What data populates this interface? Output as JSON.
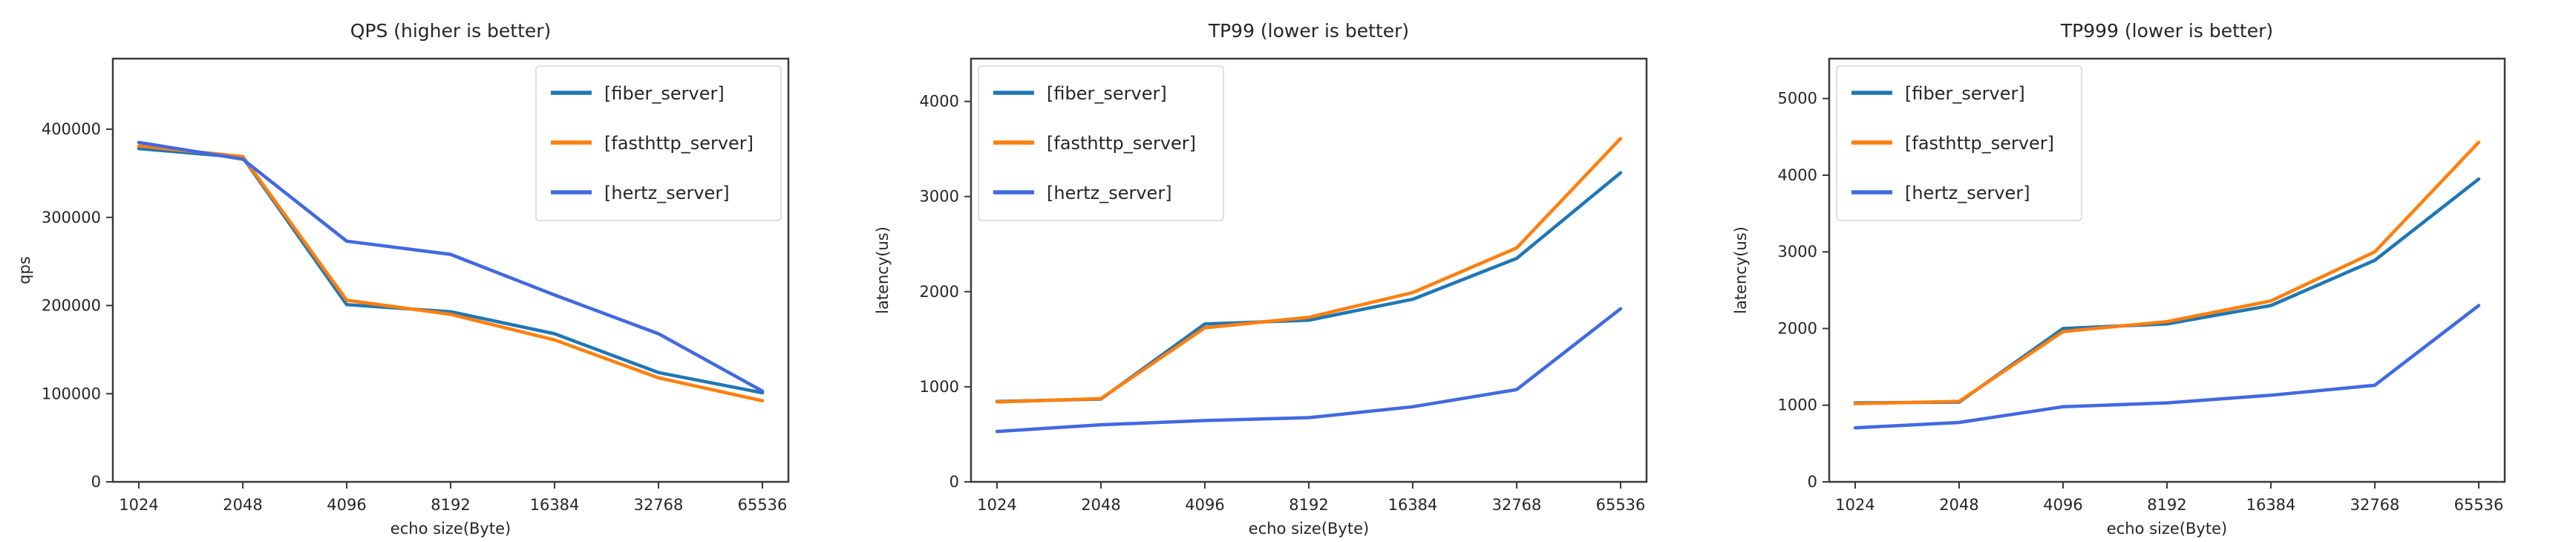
{
  "figure": {
    "background": "#ffffff"
  },
  "colors": {
    "fiber_server": "#1f77b4",
    "fasthttp_server": "#ff7f0e",
    "hertz_server": "#4169e1",
    "spine": "#3a3a3a",
    "text": "#262626",
    "legend_border": "#d5d5d5",
    "legend_bg": "#ffffff"
  },
  "chart_data": [
    {
      "type": "line",
      "title": "QPS (higher is better)",
      "xlabel": "echo size(Byte)",
      "ylabel": "qps",
      "categories": [
        "1024",
        "2048",
        "4096",
        "8192",
        "16384",
        "32768",
        "65536"
      ],
      "yticks": [
        0,
        100000,
        200000,
        300000,
        400000
      ],
      "ylim": [
        0,
        480000
      ],
      "grid": false,
      "legend_position": "upper-right",
      "series": [
        {
          "name": "[fiber_server]",
          "color_key": "fiber_server",
          "values": [
            378000,
            368000,
            201000,
            193000,
            168000,
            124000,
            101000
          ]
        },
        {
          "name": "[fasthttp_server]",
          "color_key": "fasthttp_server",
          "values": [
            381000,
            369000,
            206000,
            190000,
            161000,
            118000,
            92000
          ]
        },
        {
          "name": "[hertz_server]",
          "color_key": "hertz_server",
          "values": [
            385000,
            366000,
            273000,
            258000,
            212000,
            168000,
            103000
          ]
        }
      ]
    },
    {
      "type": "line",
      "title": "TP99 (lower is better)",
      "xlabel": "echo size(Byte)",
      "ylabel": "latency(us)",
      "categories": [
        "1024",
        "2048",
        "4096",
        "8192",
        "16384",
        "32768",
        "65536"
      ],
      "yticks": [
        0,
        1000,
        2000,
        3000,
        4000
      ],
      "ylim": [
        0,
        4450
      ],
      "grid": false,
      "legend_position": "upper-left",
      "series": [
        {
          "name": "[fiber_server]",
          "color_key": "fiber_server",
          "values": [
            845,
            870,
            1660,
            1700,
            1920,
            2350,
            3250
          ]
        },
        {
          "name": "[fasthttp_server]",
          "color_key": "fasthttp_server",
          "values": [
            840,
            875,
            1620,
            1730,
            1990,
            2460,
            3610
          ]
        },
        {
          "name": "[hertz_server]",
          "color_key": "hertz_server",
          "values": [
            530,
            600,
            645,
            675,
            790,
            970,
            1820
          ]
        }
      ]
    },
    {
      "type": "line",
      "title": "TP999 (lower is better)",
      "xlabel": "echo size(Byte)",
      "ylabel": "latency(us)",
      "categories": [
        "1024",
        "2048",
        "4096",
        "8192",
        "16384",
        "32768",
        "65536"
      ],
      "yticks": [
        0,
        1000,
        2000,
        3000,
        4000,
        5000
      ],
      "ylim": [
        0,
        5520
      ],
      "grid": false,
      "legend_position": "upper-left",
      "series": [
        {
          "name": "[fiber_server]",
          "color_key": "fiber_server",
          "values": [
            1030,
            1040,
            2000,
            2060,
            2300,
            2890,
            3950
          ]
        },
        {
          "name": "[fasthttp_server]",
          "color_key": "fasthttp_server",
          "values": [
            1020,
            1050,
            1960,
            2090,
            2360,
            3000,
            4430
          ]
        },
        {
          "name": "[hertz_server]",
          "color_key": "hertz_server",
          "values": [
            705,
            775,
            980,
            1030,
            1130,
            1260,
            2300
          ]
        }
      ]
    }
  ]
}
